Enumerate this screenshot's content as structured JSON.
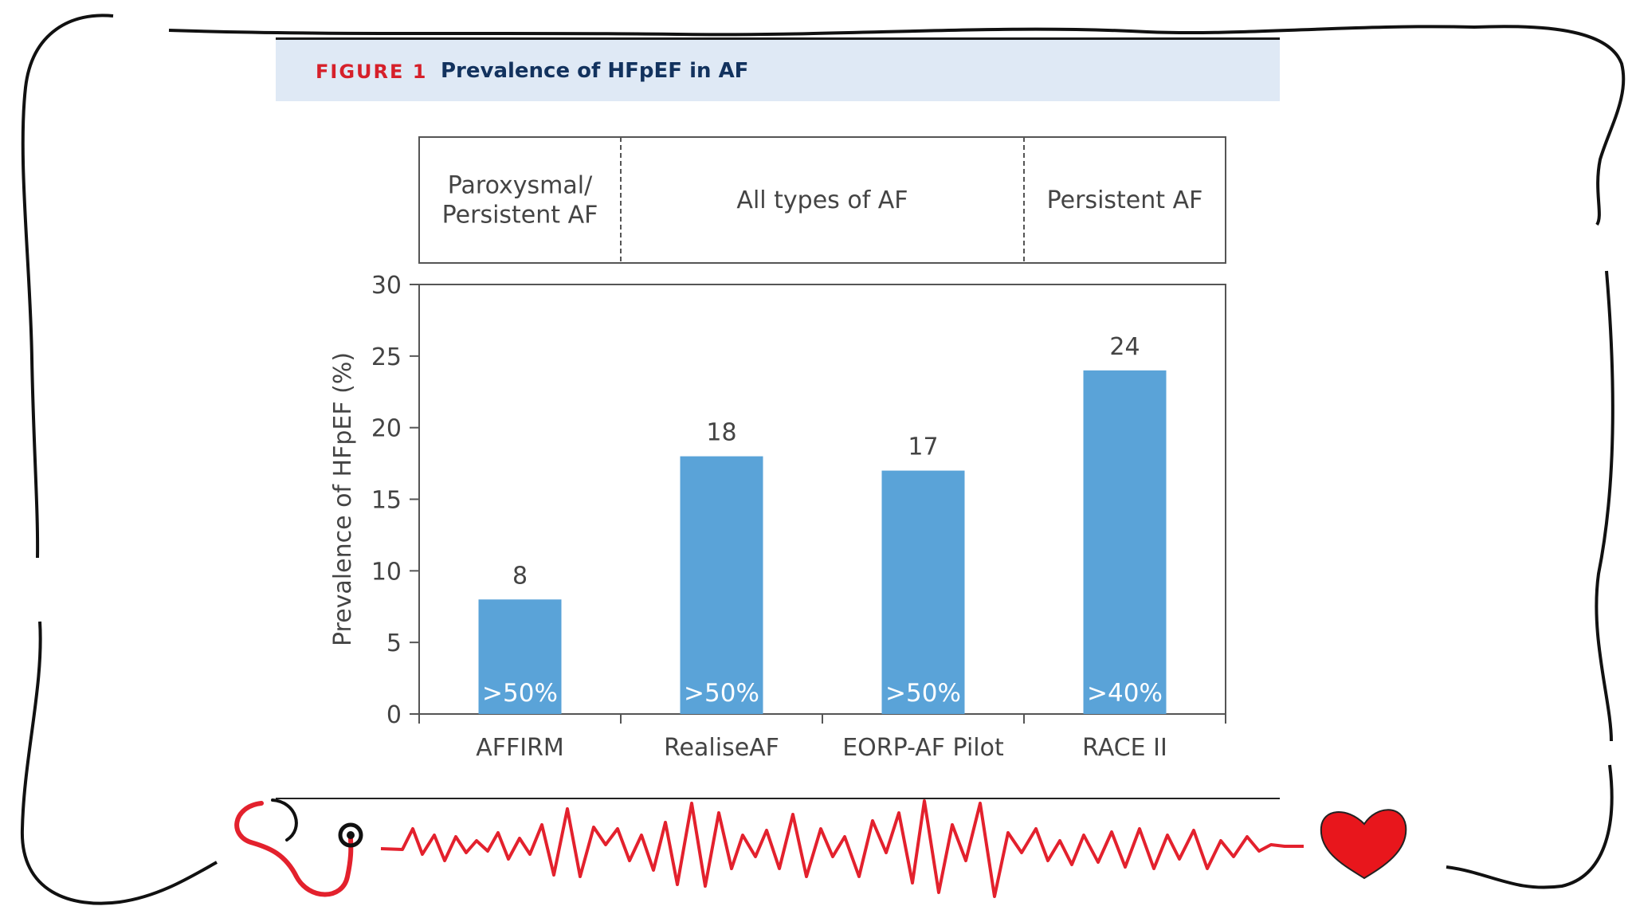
{
  "figure": {
    "label": "FIGURE 1",
    "title": "Prevalence of HFpEF in AF"
  },
  "colors": {
    "bar": "#5aa3d8",
    "accent_red": "#e3212d",
    "header_bg": "#dfe9f5",
    "title_blue": "#12325e"
  },
  "icons": [
    "stethoscope-icon",
    "ecg-wave-icon",
    "heart-icon"
  ],
  "chart_data": {
    "type": "bar",
    "categories": [
      "AFFIRM",
      "RealiseAF",
      "EORP-AF Pilot",
      "RACE II"
    ],
    "values": [
      8,
      18,
      17,
      24
    ],
    "value_labels": [
      "8",
      "18",
      "17",
      "24"
    ],
    "inbar_labels": [
      ">50%",
      ">50%",
      ">50%",
      ">40%"
    ],
    "groups": [
      {
        "label_lines": [
          "Paroxysmal/",
          "Persistent AF"
        ],
        "span": [
          0,
          0
        ]
      },
      {
        "label_lines": [
          "All types of AF"
        ],
        "span": [
          1,
          2
        ]
      },
      {
        "label_lines": [
          "Persistent AF"
        ],
        "span": [
          3,
          3
        ]
      }
    ],
    "ylabel": "Prevalence of HFpEF (%)",
    "ylim": [
      0,
      30
    ],
    "yticks": [
      0,
      5,
      10,
      15,
      20,
      25,
      30
    ],
    "grid": false
  }
}
